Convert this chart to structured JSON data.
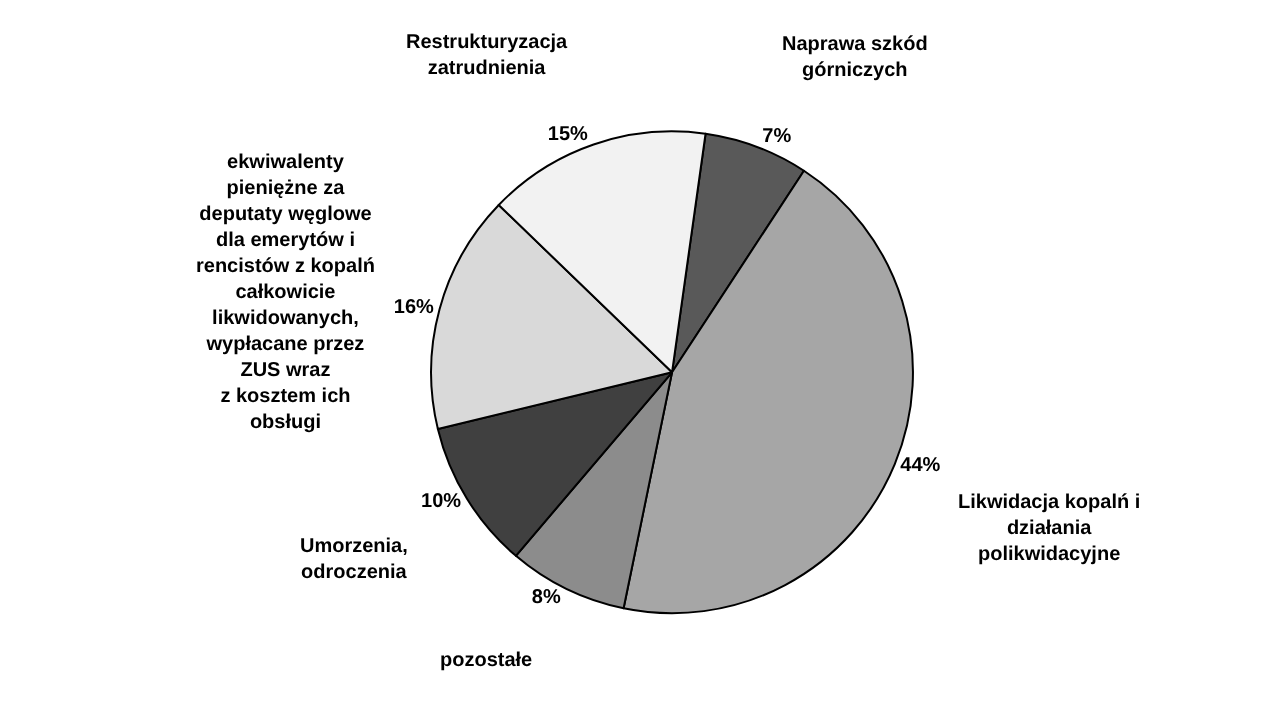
{
  "chart_data": {
    "type": "pie",
    "categories": [
      "Naprawa szkód\ngórniczych",
      "Likwidacja kopalń i\ndziałania\npolikwidacyjne",
      "pozostałe",
      "Umorzenia,\nodroczenia",
      "ekwiwalenty\npieniężne za\ndeputaty węglowe\ndla emerytów i\nrencistów z kopalń\ncałkowicie\nlikwidowanych,\nwypłacane przez\nZUS wraz\nz kosztem ich\nobsługi",
      "Restrukturyzacja\nzatrudnienia"
    ],
    "values": [
      7,
      44,
      8,
      10,
      16,
      15
    ],
    "value_labels": [
      "7%",
      "44%",
      "8%",
      "10%",
      "16%",
      "15%"
    ],
    "colors": [
      "#595959",
      "#a6a6a6",
      "#8c8c8c",
      "#404040",
      "#d9d9d9",
      "#f2f2f2"
    ],
    "legend": false
  }
}
